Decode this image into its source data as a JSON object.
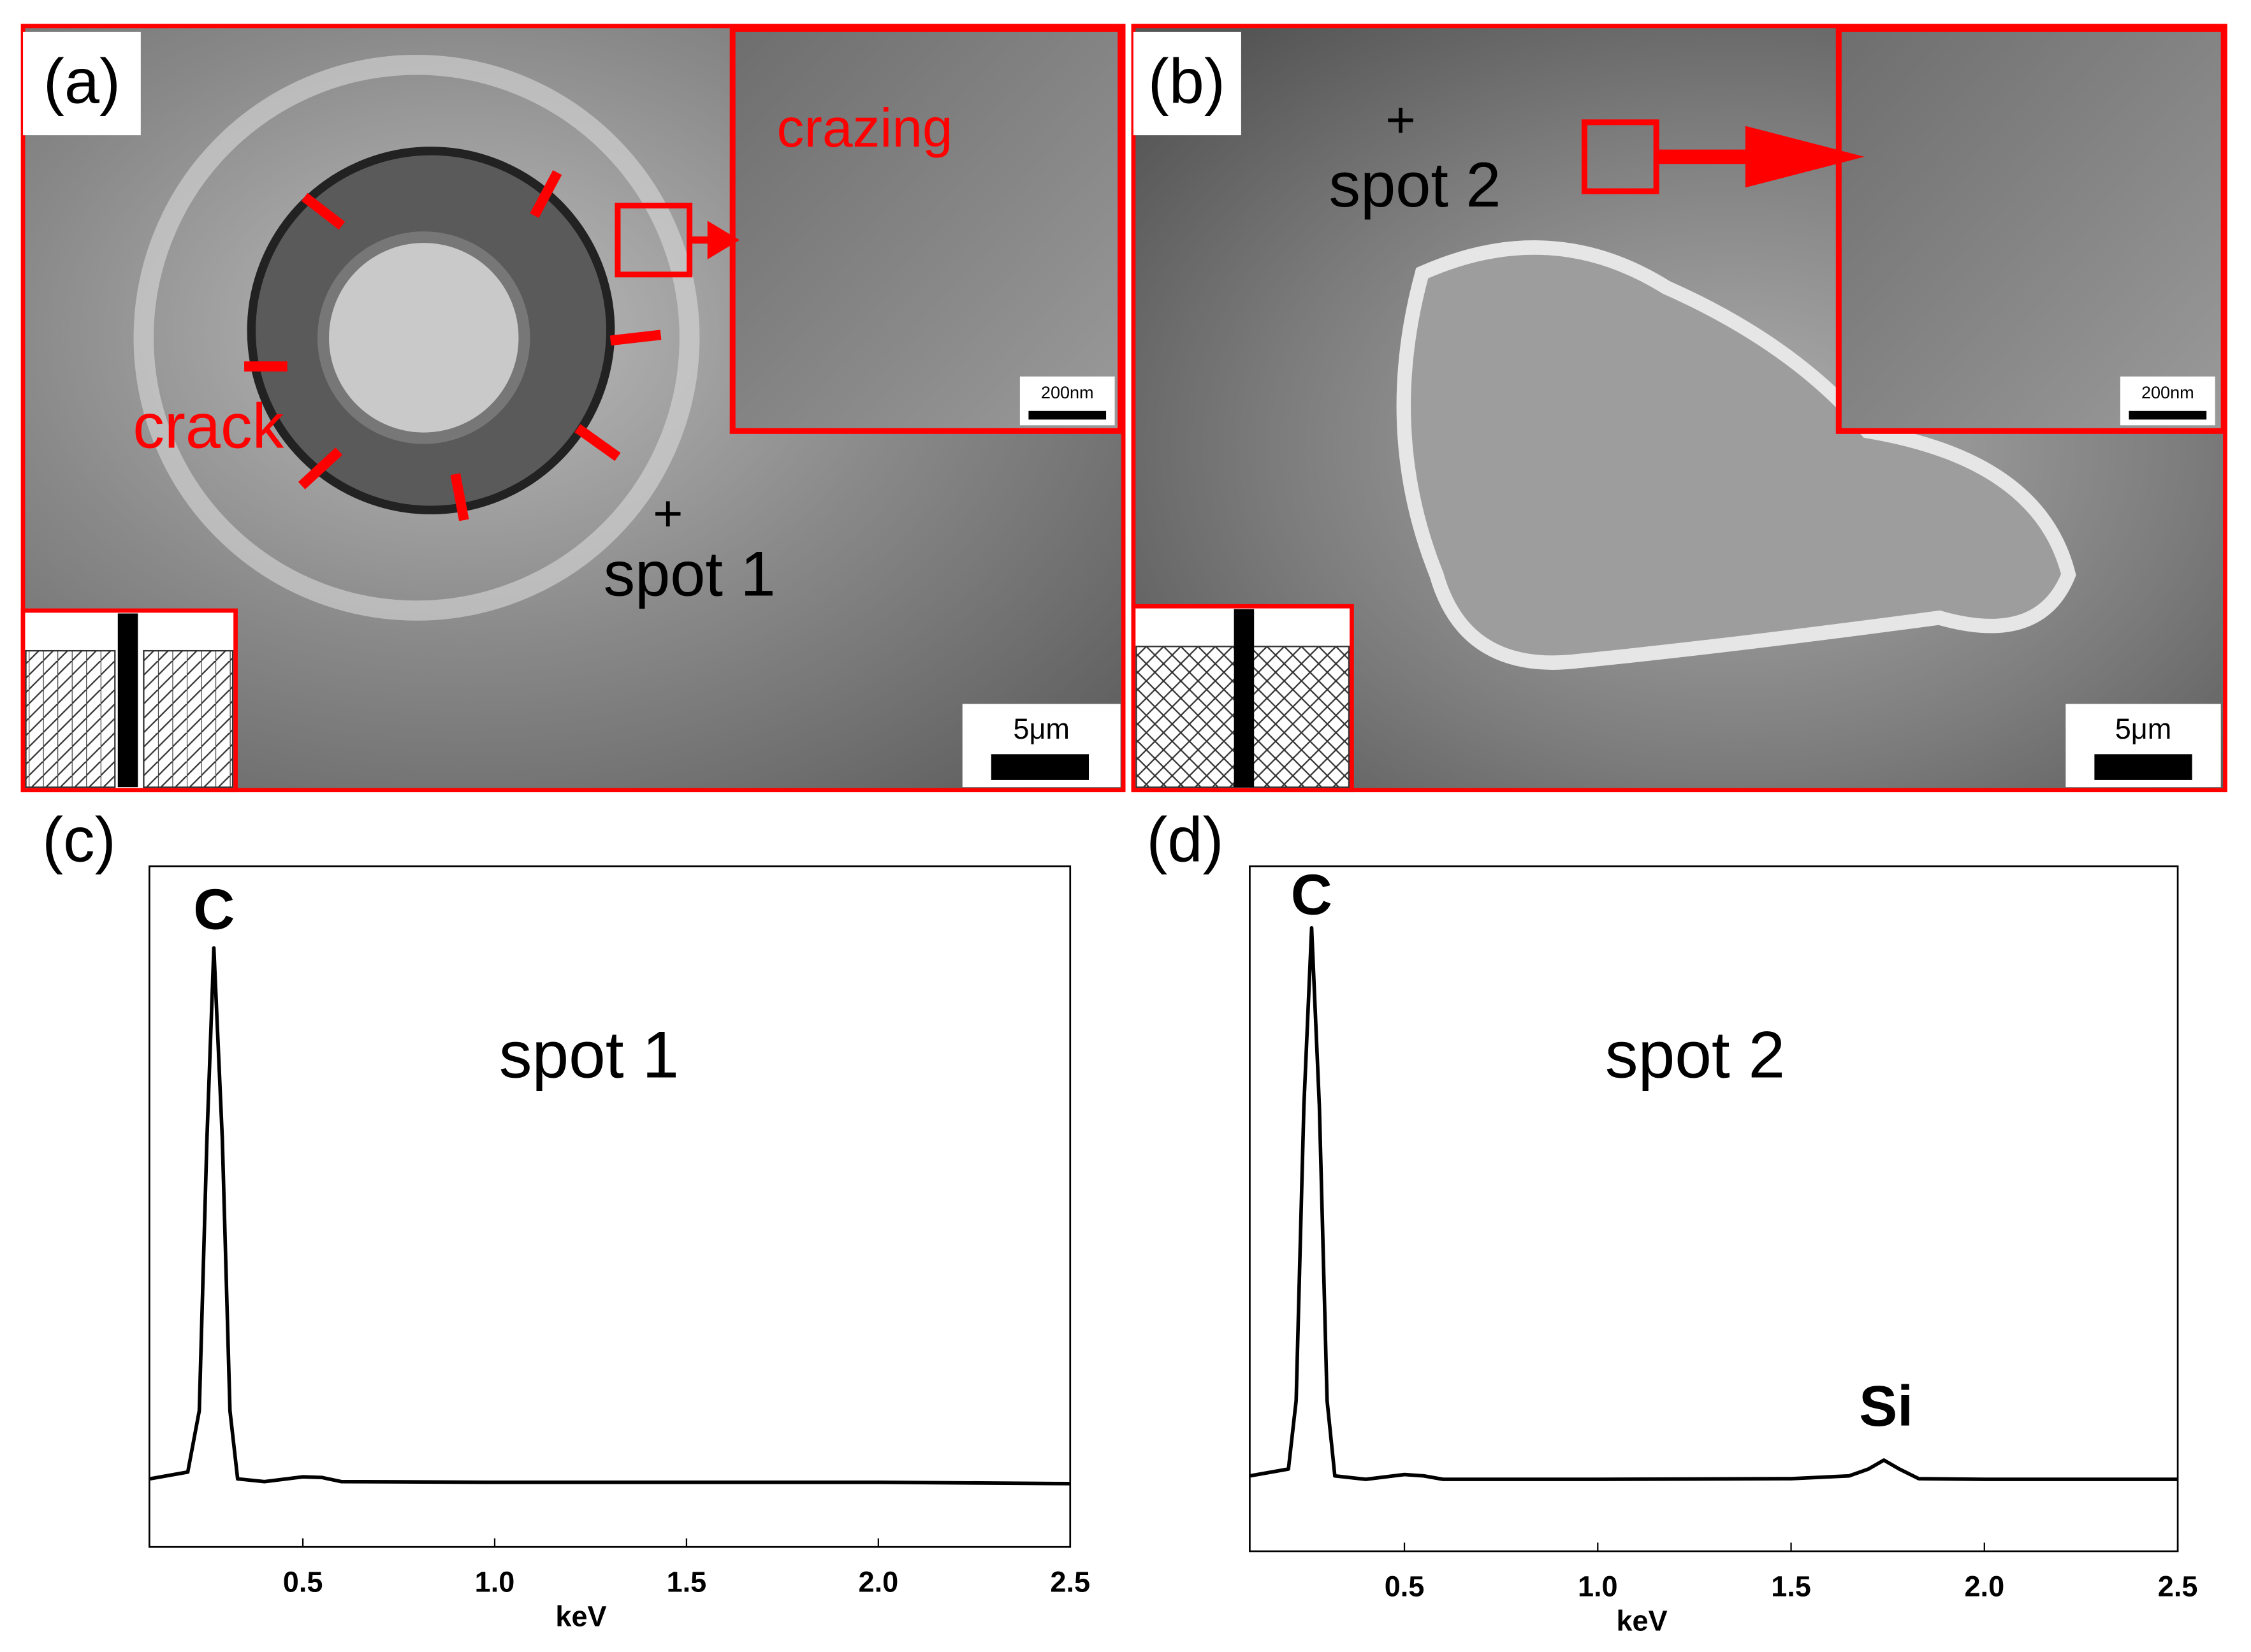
{
  "panels": [
    {
      "label": "(a)",
      "texts": [
        "crazing",
        "crack",
        "+",
        "spot 1"
      ],
      "inset_scale": "200nm",
      "scale": "5μm"
    },
    {
      "label": "(b)",
      "texts": [
        "+",
        "spot 2"
      ],
      "inset_scale": "200nm",
      "scale": "5μm"
    }
  ],
  "chart_data": [
    {
      "type": "line",
      "label": "(c)",
      "title": "spot 1",
      "xlabel": "keV",
      "annotations": [
        "C"
      ],
      "xlim": [
        0.1,
        2.5
      ],
      "ylim": [
        0,
        100
      ],
      "xticks": [
        0.5,
        {
          "value": 1,
          "label": "1.0"
        },
        1.5,
        {
          "value": 2,
          "label": "2.0"
        },
        2.5
      ],
      "series": [
        {
          "color": "#000000",
          "x": [
            0.1,
            0.2,
            0.23,
            0.25,
            0.268,
            0.29,
            0.31,
            0.33,
            0.4,
            0.5,
            0.55,
            0.6,
            1.0,
            1.5,
            2.0,
            2.5
          ],
          "values": [
            10,
            11,
            20,
            60,
            88,
            60,
            20,
            10,
            9.6,
            10.3,
            10.2,
            9.6,
            9.5,
            9.5,
            9.5,
            9.3
          ]
        }
      ]
    },
    {
      "type": "line",
      "label": "(d)",
      "title": "spot 2",
      "xlabel": "keV",
      "annotations": [
        "C",
        "Si"
      ],
      "xlim": [
        0.1,
        2.5
      ],
      "ylim": [
        0,
        100
      ],
      "xticks": [
        0.5,
        {
          "value": 1,
          "label": "1.0"
        },
        1.5,
        {
          "value": 2,
          "label": "2.0"
        },
        2.5
      ],
      "series": [
        {
          "color": "#000000",
          "x": [
            0.1,
            0.2,
            0.22,
            0.24,
            0.26,
            0.28,
            0.3,
            0.32,
            0.4,
            0.5,
            0.55,
            0.6,
            1.0,
            1.5,
            1.65,
            1.7,
            1.74,
            1.78,
            1.83,
            2.0,
            2.5
          ],
          "values": [
            11,
            12,
            22,
            65,
            91,
            65,
            22,
            11,
            10.5,
            11.2,
            11,
            10.5,
            10.5,
            10.6,
            11,
            12,
            13.3,
            12,
            10.6,
            10.5,
            10.5
          ]
        }
      ]
    }
  ]
}
